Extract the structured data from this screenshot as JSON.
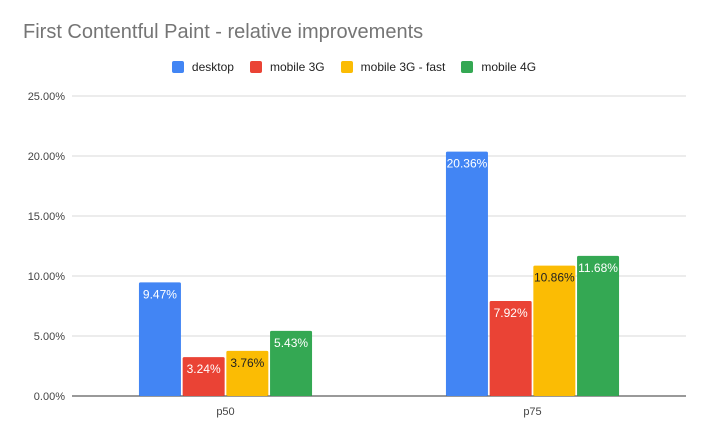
{
  "chart_data": {
    "type": "bar",
    "title": "First Contentful Paint - relative improvements",
    "categories": [
      "p50",
      "p75"
    ],
    "series": [
      {
        "name": "desktop",
        "color": "#4285f4",
        "values": [
          9.47,
          20.36
        ],
        "labels": [
          "9.47%",
          "20.36%"
        ],
        "label_color": "#ffffff"
      },
      {
        "name": "mobile 3G",
        "color": "#ea4335",
        "values": [
          3.24,
          7.92
        ],
        "labels": [
          "3.24%",
          "7.92%"
        ],
        "label_color": "#ffffff"
      },
      {
        "name": "mobile 3G - fast",
        "color": "#fbbc04",
        "values": [
          3.76,
          10.86
        ],
        "labels": [
          "3.76%",
          "10.86%"
        ],
        "label_color": "#222222"
      },
      {
        "name": "mobile 4G",
        "color": "#34a853",
        "values": [
          5.43,
          11.68
        ],
        "labels": [
          "5.43%",
          "11.68%"
        ],
        "label_color": "#ffffff"
      }
    ],
    "yticks": [
      "0.00%",
      "5.00%",
      "10.00%",
      "15.00%",
      "20.00%",
      "25.00%"
    ],
    "ylim": [
      0,
      25
    ],
    "xlabel": "",
    "ylabel": "",
    "legend_position": "top",
    "grid": true
  }
}
